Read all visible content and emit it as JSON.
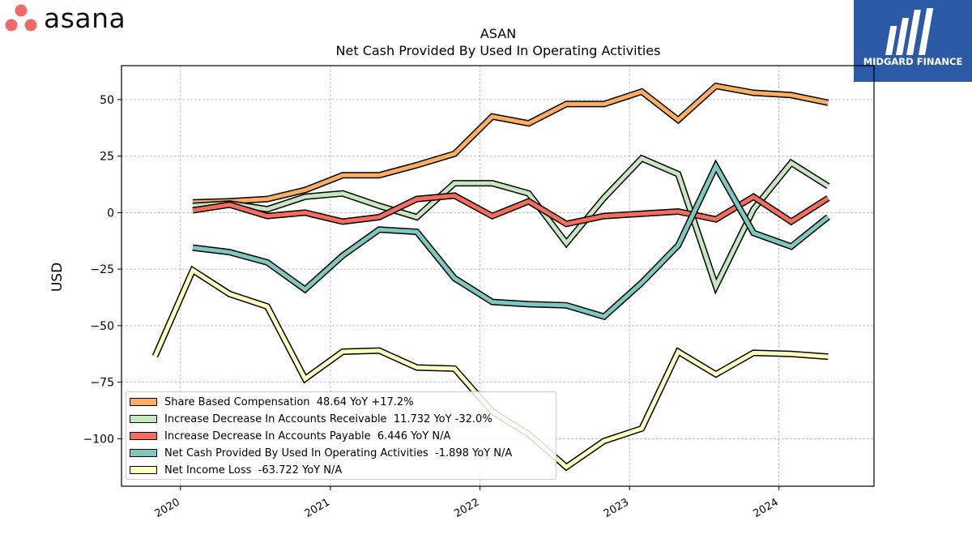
{
  "brand": {
    "left_logo_text": "asana",
    "right_logo_text": "MIDGARD FINANCE",
    "left_logo_color": "#f06a6a",
    "right_logo_bg": "#2d5aa6"
  },
  "chart_data": {
    "type": "line",
    "title": "ASAN",
    "subtitle": "Net Cash Provided By Used In Operating Activities",
    "xlabel": "",
    "ylabel": "USD",
    "ylim": [
      -121,
      65
    ],
    "xlim": [
      "2019-08-10",
      "2024-08-20"
    ],
    "grid": true,
    "legend_position": "lower-left",
    "x_ticks": [
      "2020",
      "2021",
      "2022",
      "2023",
      "2024"
    ],
    "y_ticks": [
      50,
      25,
      0,
      -25,
      -50,
      -75,
      -100
    ],
    "series": [
      {
        "name": "Share Based Compensation",
        "legend_label": "Share Based Compensation  48.64 YoY +17.2%",
        "color": "#fdae61",
        "x": [
          "2020-01-31",
          "2020-04-30",
          "2020-07-31",
          "2020-10-31",
          "2021-01-31",
          "2021-04-30",
          "2021-07-31",
          "2021-10-31",
          "2022-01-31",
          "2022-04-30",
          "2022-07-31",
          "2022-10-31",
          "2023-01-31",
          "2023-04-30",
          "2023-07-31",
          "2023-10-31",
          "2024-01-31",
          "2024-04-30"
        ],
        "values": [
          4.5,
          5.0,
          6.0,
          10.0,
          16.5,
          16.5,
          21.0,
          26.0,
          42.5,
          39.5,
          48.0,
          48.0,
          53.5,
          41.0,
          56.0,
          53.0,
          52.0,
          48.6
        ]
      },
      {
        "name": "Increase Decrease In Accounts Receivable",
        "legend_label": "Increase Decrease In Accounts Receivable  11.732 YoY -32.0%",
        "color": "#c7e7c0",
        "x": [
          "2020-01-31",
          "2020-04-30",
          "2020-07-31",
          "2020-10-31",
          "2021-01-31",
          "2021-04-30",
          "2021-07-31",
          "2021-10-31",
          "2022-01-31",
          "2022-04-30",
          "2022-07-31",
          "2022-10-31",
          "2023-01-31",
          "2023-04-30",
          "2023-07-31",
          "2023-10-31",
          "2024-01-31",
          "2024-04-30"
        ],
        "values": [
          3.0,
          4.0,
          1.5,
          7.0,
          8.5,
          3.0,
          -2.0,
          13.0,
          13.0,
          8.5,
          -13.5,
          6.5,
          24.0,
          17.0,
          -32.5,
          1.5,
          22.0,
          11.7
        ]
      },
      {
        "name": "Increase Decrease In Accounts Payable",
        "legend_label": "Increase Decrease In Accounts Payable  6.446 YoY N/A",
        "color": "#f46d5d",
        "x": [
          "2020-01-31",
          "2020-04-30",
          "2020-07-31",
          "2020-10-31",
          "2021-01-31",
          "2021-04-30",
          "2021-07-31",
          "2021-10-31",
          "2022-01-31",
          "2022-04-30",
          "2022-07-31",
          "2022-10-31",
          "2023-01-31",
          "2023-04-30",
          "2023-07-31",
          "2023-10-31",
          "2024-01-31",
          "2024-04-30"
        ],
        "values": [
          1.0,
          3.5,
          -1.5,
          0.0,
          -4.0,
          -2.0,
          6.0,
          7.5,
          -1.5,
          5.0,
          -5.0,
          -1.5,
          -0.5,
          0.5,
          -3.0,
          7.0,
          -4.0,
          6.4
        ]
      },
      {
        "name": "Net Cash Provided By Used In Operating Activities",
        "legend_label": "Net Cash Provided By Used In Operating Activities  -1.898 YoY N/A",
        "color": "#7ec8bf",
        "x": [
          "2020-01-31",
          "2020-04-30",
          "2020-07-31",
          "2020-10-31",
          "2021-01-31",
          "2021-04-30",
          "2021-07-31",
          "2021-10-31",
          "2022-01-31",
          "2022-04-30",
          "2022-07-31",
          "2022-10-31",
          "2023-01-31",
          "2023-04-30",
          "2023-07-31",
          "2023-10-31",
          "2024-01-31",
          "2024-04-30"
        ],
        "values": [
          -15.5,
          -17.5,
          -22.0,
          -34.0,
          -19.0,
          -7.5,
          -8.5,
          -29.0,
          -39.5,
          -40.5,
          -41.0,
          -46.0,
          -31.0,
          -14.5,
          20.5,
          -9.0,
          -15.0,
          -1.9
        ]
      },
      {
        "name": "Net Income Loss",
        "legend_label": "Net Income Loss  -63.722 YoY N/A",
        "color": "#ffffbf",
        "x": [
          "2019-10-31",
          "2020-01-31",
          "2020-04-30",
          "2020-07-31",
          "2020-10-31",
          "2021-01-31",
          "2021-04-30",
          "2021-07-31",
          "2021-10-31",
          "2022-01-31",
          "2022-04-30",
          "2022-07-31",
          "2022-10-31",
          "2023-01-31",
          "2023-04-30",
          "2023-07-31",
          "2023-10-31",
          "2024-01-31",
          "2024-04-30"
        ],
        "values": [
          -63.5,
          -25.5,
          -36.0,
          -41.5,
          -73.5,
          -61.5,
          -61.0,
          -68.5,
          -69.0,
          -88.0,
          -98.0,
          -112.5,
          -101.0,
          -95.5,
          -61.5,
          -71.5,
          -62.0,
          -62.5,
          -63.7
        ]
      }
    ]
  }
}
